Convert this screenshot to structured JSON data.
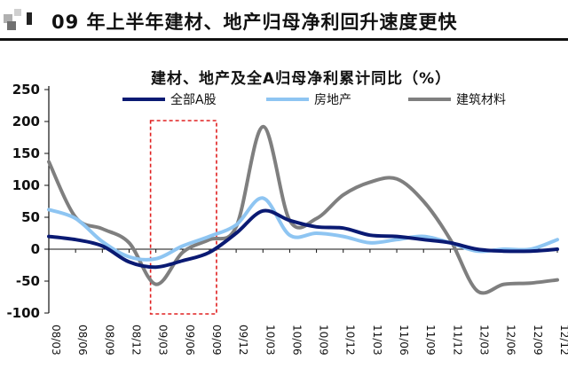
{
  "header": {
    "title": "09 年上半年建材、地产归母净利回升速度更快"
  },
  "colors": {
    "all_a": "#0a1a73",
    "real_estate": "#8ec5f2",
    "building": "#7f7f7f",
    "highlight": "#e02020"
  },
  "chart_data": {
    "type": "line",
    "title": "建材、地产及全A归母净利累计同比（%）",
    "ylim": [
      -100,
      250
    ],
    "yticks": [
      -100,
      -50,
      0,
      50,
      100,
      150,
      200,
      250
    ],
    "grid": false,
    "legend_position": "top",
    "x": [
      "08/03",
      "08/06",
      "08/09",
      "08/12",
      "09/03",
      "09/06",
      "09/09",
      "09/12",
      "10/03",
      "10/06",
      "10/09",
      "10/12",
      "11/03",
      "11/06",
      "11/09",
      "11/12",
      "12/03",
      "12/06",
      "12/09",
      "12/12"
    ],
    "x_tick_labels": [
      "08/03",
      "08/06",
      "08/09",
      "08/12",
      "09/03",
      "09/06",
      "09/09",
      "09/12",
      "10/03",
      "10/06",
      "10/09",
      "10/12",
      "11/03",
      "11/06",
      "11/09",
      "11/12",
      "12/03",
      "12/06",
      "12/09",
      "12/12"
    ],
    "highlight_range": [
      "09/03",
      "09/09"
    ],
    "series": [
      {
        "name": "全部A股",
        "color_key": "all_a",
        "values": [
          20,
          15,
          5,
          -20,
          -28,
          -18,
          -5,
          25,
          60,
          45,
          35,
          33,
          22,
          20,
          15,
          10,
          0,
          -3,
          -3,
          0
        ]
      },
      {
        "name": "房地产",
        "color_key": "real_estate",
        "values": [
          62,
          48,
          12,
          -12,
          -15,
          5,
          20,
          38,
          80,
          22,
          25,
          20,
          10,
          15,
          20,
          10,
          -3,
          0,
          0,
          15
        ]
      },
      {
        "name": "建筑材料",
        "color_key": "building",
        "values": [
          137,
          50,
          32,
          10,
          -55,
          -5,
          15,
          35,
          192,
          45,
          48,
          85,
          105,
          110,
          75,
          15,
          -65,
          -55,
          -53,
          -48
        ]
      }
    ]
  }
}
